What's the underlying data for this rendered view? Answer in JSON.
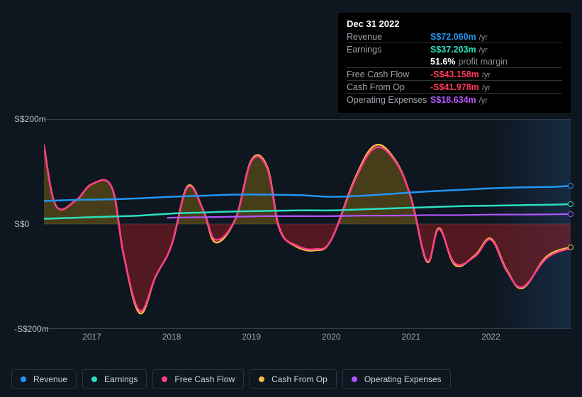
{
  "tooltip": {
    "date": "Dec 31 2022",
    "rows": [
      {
        "label": "Revenue",
        "value": "S$72.060m",
        "unit": "/yr",
        "color": "#2196f3"
      },
      {
        "label": "Earnings",
        "value": "S$37.203m",
        "unit": "/yr",
        "color": "#2be0c0"
      },
      {
        "label": "",
        "value": "51.6%",
        "sub_note": "profit margin",
        "color": "#ffffff",
        "is_sub": true
      },
      {
        "label": "Free Cash Flow",
        "value": "-S$43.158m",
        "unit": "/yr",
        "color": "#ff3b5c"
      },
      {
        "label": "Cash From Op",
        "value": "-S$41.978m",
        "unit": "/yr",
        "color": "#ff3b5c"
      },
      {
        "label": "Operating Expenses",
        "value": "S$18.634m",
        "unit": "/yr",
        "color": "#b455ff"
      }
    ]
  },
  "chart": {
    "type": "area-line",
    "background_color": "#0e1620",
    "grid_border_color": "rgba(170,180,190,0.25)",
    "ylim": [
      -200,
      200
    ],
    "y_ticks": [
      {
        "v": 200,
        "label": "S$200m"
      },
      {
        "v": 0,
        "label": "S$0"
      },
      {
        "v": -200,
        "label": "-S$200m"
      }
    ],
    "xlim": [
      2016.4,
      2023.0
    ],
    "x_ticks": [
      2017,
      2018,
      2019,
      2020,
      2021,
      2022
    ],
    "future_start_x": 2022.0,
    "series": {
      "revenue": {
        "name": "Revenue",
        "color": "#2196f3",
        "stroke_width": 2.5,
        "data": [
          [
            2016.4,
            44
          ],
          [
            2016.8,
            46
          ],
          [
            2017.2,
            47
          ],
          [
            2017.6,
            49
          ],
          [
            2018.0,
            52
          ],
          [
            2018.4,
            54
          ],
          [
            2018.8,
            56
          ],
          [
            2019.2,
            56
          ],
          [
            2019.6,
            55
          ],
          [
            2020.0,
            52
          ],
          [
            2020.4,
            54
          ],
          [
            2020.8,
            58
          ],
          [
            2021.2,
            62
          ],
          [
            2021.6,
            65
          ],
          [
            2022.0,
            68
          ],
          [
            2022.4,
            70
          ],
          [
            2022.8,
            71
          ],
          [
            2023.0,
            73
          ]
        ],
        "end_dot": true
      },
      "earnings": {
        "name": "Earnings",
        "color": "#2be0c0",
        "stroke_width": 2.5,
        "data": [
          [
            2016.4,
            10
          ],
          [
            2016.8,
            12
          ],
          [
            2017.2,
            14
          ],
          [
            2017.6,
            16
          ],
          [
            2018.0,
            20
          ],
          [
            2018.4,
            22
          ],
          [
            2018.8,
            24
          ],
          [
            2019.2,
            25
          ],
          [
            2019.6,
            26
          ],
          [
            2020.0,
            26
          ],
          [
            2020.4,
            28
          ],
          [
            2020.8,
            30
          ],
          [
            2021.2,
            32
          ],
          [
            2021.6,
            34
          ],
          [
            2022.0,
            35
          ],
          [
            2022.4,
            36
          ],
          [
            2022.8,
            37
          ],
          [
            2023.0,
            38
          ]
        ],
        "end_dot": true
      },
      "opex": {
        "name": "Operating Expenses",
        "color": "#b455ff",
        "stroke_width": 2.2,
        "data": [
          [
            2017.95,
            12
          ],
          [
            2018.4,
            13
          ],
          [
            2018.8,
            14
          ],
          [
            2019.2,
            15
          ],
          [
            2019.6,
            15
          ],
          [
            2020.0,
            15
          ],
          [
            2020.4,
            16
          ],
          [
            2020.8,
            16
          ],
          [
            2021.2,
            17
          ],
          [
            2021.6,
            17
          ],
          [
            2022.0,
            18
          ],
          [
            2022.4,
            18
          ],
          [
            2022.8,
            18.5
          ],
          [
            2023.0,
            19
          ]
        ],
        "end_dot": true
      },
      "fcf": {
        "name": "Free Cash Flow",
        "color": "#ff3b8a",
        "stroke_width": 2.5,
        "hidden_stroke_below_cash": false,
        "data": [
          [
            2016.4,
            150
          ],
          [
            2016.55,
            35
          ],
          [
            2016.8,
            45
          ],
          [
            2017.0,
            76
          ],
          [
            2017.25,
            70
          ],
          [
            2017.4,
            -60
          ],
          [
            2017.6,
            -165
          ],
          [
            2017.8,
            -100
          ],
          [
            2018.0,
            -40
          ],
          [
            2018.2,
            70
          ],
          [
            2018.4,
            25
          ],
          [
            2018.55,
            -30
          ],
          [
            2018.8,
            10
          ],
          [
            2019.0,
            120
          ],
          [
            2019.2,
            105
          ],
          [
            2019.35,
            -10
          ],
          [
            2019.55,
            -40
          ],
          [
            2019.8,
            -48
          ],
          [
            2020.0,
            -30
          ],
          [
            2020.3,
            85
          ],
          [
            2020.55,
            145
          ],
          [
            2020.8,
            120
          ],
          [
            2021.0,
            50
          ],
          [
            2021.2,
            -70
          ],
          [
            2021.35,
            -10
          ],
          [
            2021.55,
            -75
          ],
          [
            2021.8,
            -62
          ],
          [
            2022.0,
            -30
          ],
          [
            2022.2,
            -90
          ],
          [
            2022.4,
            -120
          ],
          [
            2022.7,
            -65
          ],
          [
            2023.0,
            -46
          ]
        ]
      },
      "cash_from_op": {
        "name": "Cash From Op",
        "color": "#f5b942",
        "stroke_width": 2.5,
        "fill_pos": "rgba(120,95,20,0.55)",
        "fill_neg": "rgba(140,30,35,0.55)",
        "data": [
          [
            2016.4,
            150
          ],
          [
            2016.55,
            35
          ],
          [
            2016.8,
            45
          ],
          [
            2017.0,
            76
          ],
          [
            2017.25,
            70
          ],
          [
            2017.4,
            -60
          ],
          [
            2017.6,
            -170
          ],
          [
            2017.8,
            -100
          ],
          [
            2018.0,
            -40
          ],
          [
            2018.2,
            72
          ],
          [
            2018.4,
            25
          ],
          [
            2018.55,
            -35
          ],
          [
            2018.8,
            10
          ],
          [
            2019.0,
            122
          ],
          [
            2019.2,
            108
          ],
          [
            2019.35,
            -8
          ],
          [
            2019.55,
            -42
          ],
          [
            2019.8,
            -50
          ],
          [
            2020.0,
            -30
          ],
          [
            2020.3,
            88
          ],
          [
            2020.55,
            150
          ],
          [
            2020.8,
            122
          ],
          [
            2021.0,
            50
          ],
          [
            2021.2,
            -72
          ],
          [
            2021.35,
            -8
          ],
          [
            2021.55,
            -78
          ],
          [
            2021.8,
            -60
          ],
          [
            2022.0,
            -28
          ],
          [
            2022.2,
            -88
          ],
          [
            2022.4,
            -122
          ],
          [
            2022.7,
            -62
          ],
          [
            2023.0,
            -44
          ]
        ],
        "end_dot": true
      }
    },
    "legend": [
      {
        "key": "revenue",
        "label": "Revenue",
        "color": "#2196f3"
      },
      {
        "key": "earnings",
        "label": "Earnings",
        "color": "#2be0c0"
      },
      {
        "key": "fcf",
        "label": "Free Cash Flow",
        "color": "#ff3b8a"
      },
      {
        "key": "cash_from_op",
        "label": "Cash From Op",
        "color": "#f5b942"
      },
      {
        "key": "opex",
        "label": "Operating Expenses",
        "color": "#b455ff"
      }
    ]
  }
}
